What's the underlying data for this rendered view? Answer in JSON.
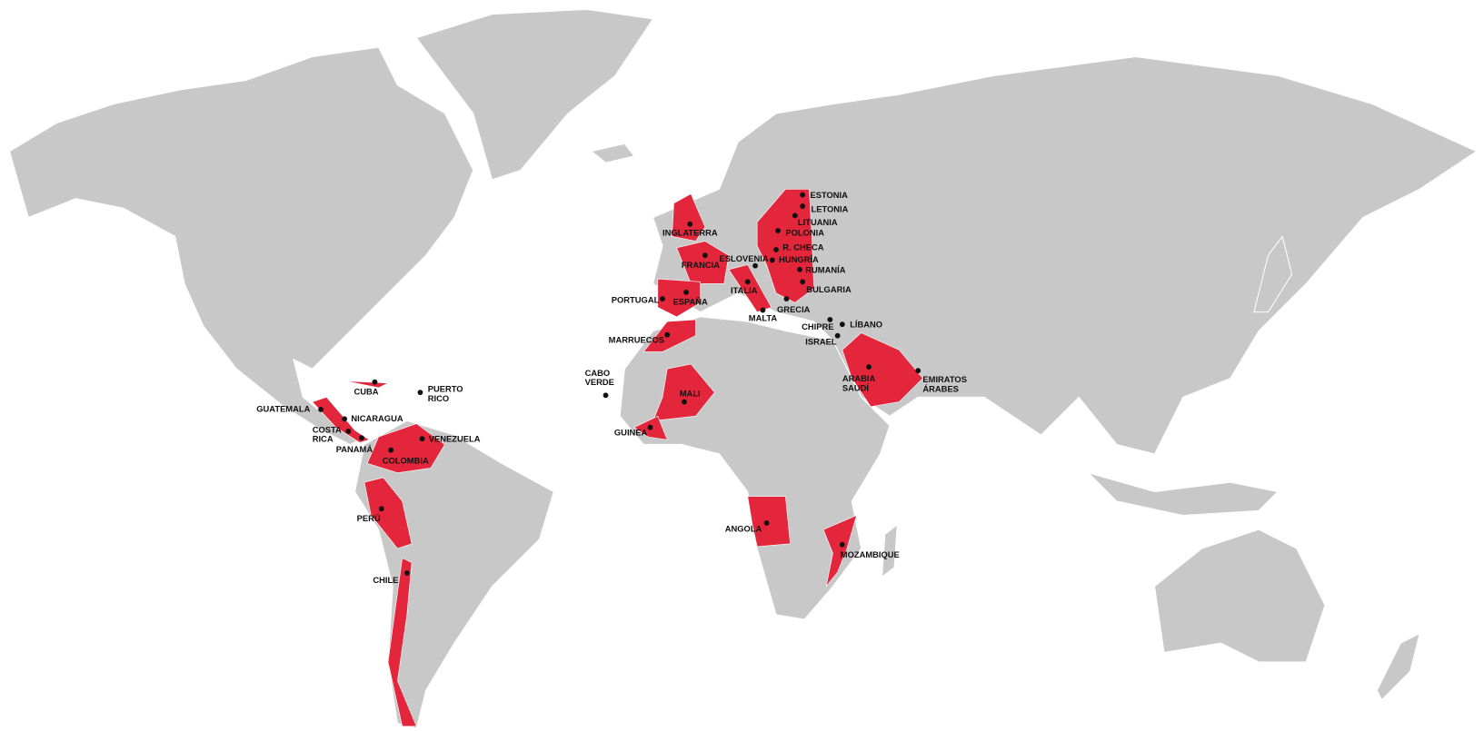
{
  "countries": [
    [
      "ESTONIA"
    ],
    [
      "LETONIA"
    ],
    [
      "LITUANIA"
    ],
    [
      "POLONIA"
    ],
    [
      "R. CHECA"
    ],
    [
      "ESLOVENIA"
    ],
    [
      "HUNGRÍA"
    ],
    [
      "RUMANÍA"
    ],
    [
      "BULGARIA"
    ],
    [
      "GRECIA"
    ],
    [
      "MALTA"
    ],
    [
      "CHIPRE"
    ],
    [
      "LÍBANO"
    ],
    [
      "ISRAEL"
    ],
    [
      "INGLATERRA"
    ],
    [
      "FRANCIA"
    ],
    [
      "ITALIA"
    ],
    [
      "ESPAÑA"
    ],
    [
      "PORTUGAL"
    ],
    [
      "MARRUECOS"
    ],
    [
      "CABO",
      "VERDE"
    ],
    [
      "MALI"
    ],
    [
      "GUINEA"
    ],
    [
      "ARABIA",
      "SAUDÍ"
    ],
    [
      "EMIRATOS",
      "ÁRABES"
    ],
    [
      "ANGOLA"
    ],
    [
      "MOZAMBIQUE"
    ],
    [
      "CUBA"
    ],
    [
      "PUERTO",
      "RICO"
    ],
    [
      "GUATEMALA"
    ],
    [
      "NICARAGUA"
    ],
    [
      "COSTA",
      "RICA"
    ],
    [
      "PANAMÁ"
    ],
    [
      "VENEZUELA"
    ],
    [
      "COLOMBIA"
    ],
    [
      "PERÚ"
    ],
    [
      "CHILE"
    ]
  ]
}
